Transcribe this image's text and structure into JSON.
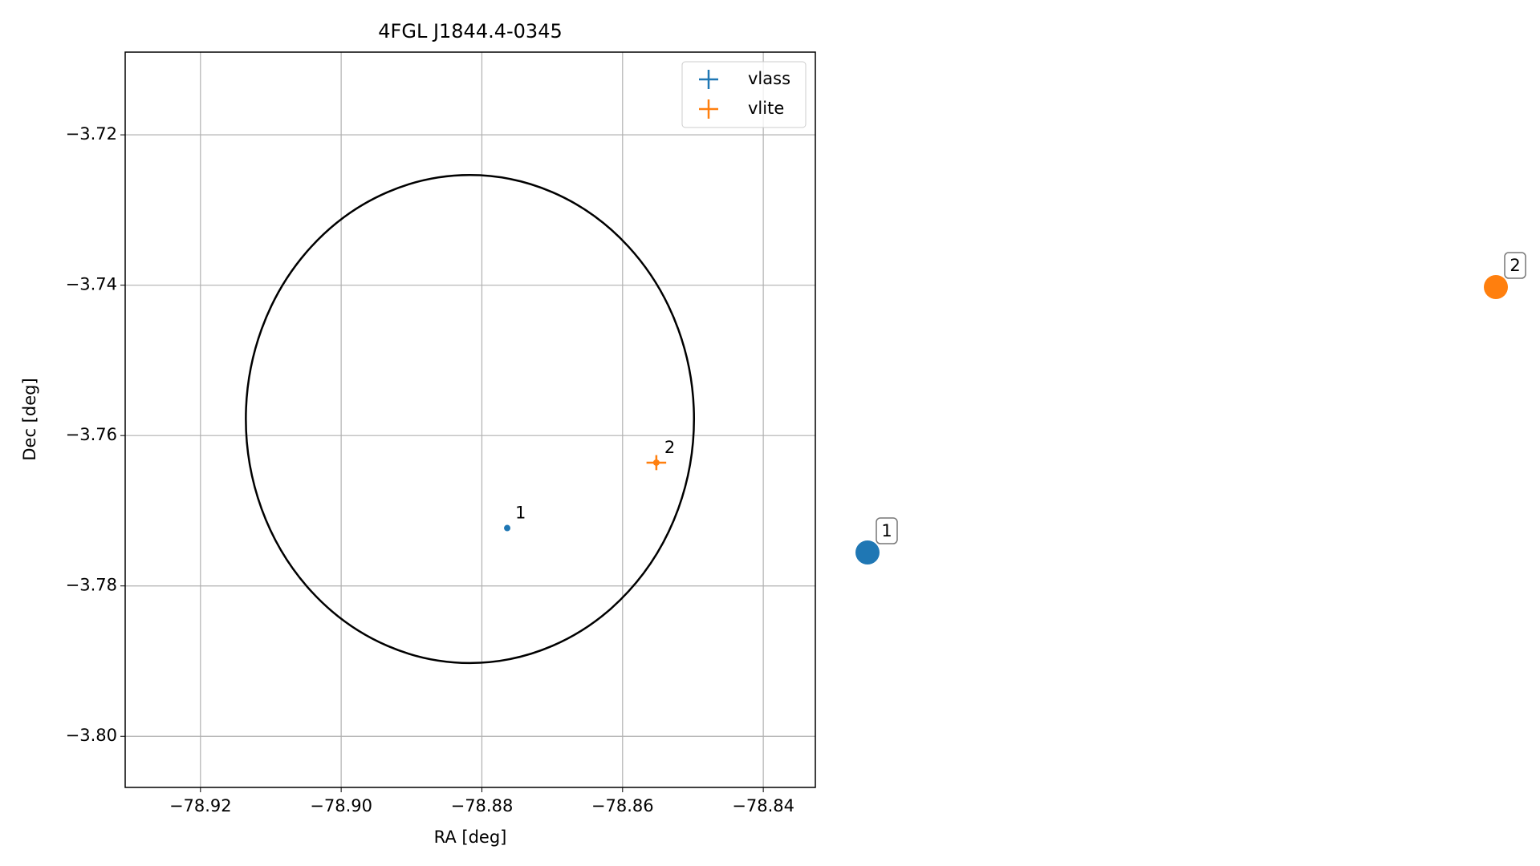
{
  "chart_data": {
    "type": "scatter",
    "title": "4FGL J1844.4-0345",
    "xlabel": "RA [deg]",
    "ylabel": "Dec [deg]",
    "xlim": [
      -78.9307,
      -78.8326
    ],
    "ylim": [
      -3.8068,
      -3.709
    ],
    "xticks": [
      {
        "value": -78.92,
        "label": "−78.92"
      },
      {
        "value": -78.9,
        "label": "−78.90"
      },
      {
        "value": -78.88,
        "label": "−78.88"
      },
      {
        "value": -78.86,
        "label": "−78.86"
      },
      {
        "value": -78.84,
        "label": "−78.84"
      }
    ],
    "yticks": [
      {
        "value": -3.72,
        "label": "−3.72"
      },
      {
        "value": -3.74,
        "label": "−3.74"
      },
      {
        "value": -3.76,
        "label": "−3.76"
      },
      {
        "value": -3.78,
        "label": "−3.78"
      },
      {
        "value": -3.8,
        "label": "−3.80"
      }
    ],
    "grid": true,
    "legend": "upper right",
    "ellipse": {
      "center_x": -78.8817,
      "center_y": -3.7578,
      "width": 0.0637,
      "height": 0.0649,
      "color": "#000000"
    },
    "series": [
      {
        "name": "vlass",
        "color": "#1f77b4",
        "x": [
          -78.8764
        ],
        "y": [
          -3.7723
        ],
        "xerr": [
          0.0003
        ],
        "yerr": [
          0.0003
        ],
        "labels": [
          "1"
        ]
      },
      {
        "name": "vlite",
        "color": "#ff7f0e",
        "x": [
          -78.8552
        ],
        "y": [
          -3.7636
        ],
        "xerr": [
          0.0014
        ],
        "yerr": [
          0.001
        ],
        "labels": [
          "2"
        ]
      }
    ]
  }
}
